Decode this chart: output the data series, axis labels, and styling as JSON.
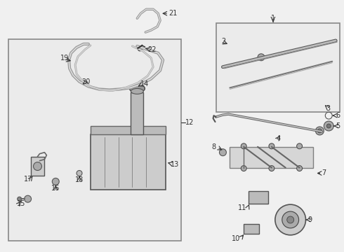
{
  "bg": "#f0f0f0",
  "white": "#ffffff",
  "dark": "#333333",
  "mid": "#777777",
  "light": "#aaaaaa",
  "box_edge": "#888888",
  "figsize": [
    4.9,
    3.6
  ],
  "dpi": 100
}
